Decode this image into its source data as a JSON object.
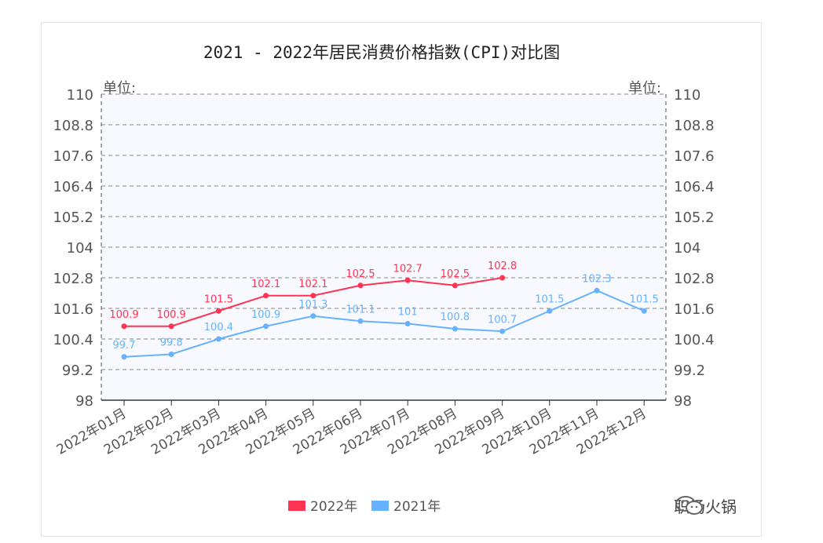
{
  "chart_data": {
    "type": "line",
    "title": "2021 - 2022年居民消费价格指数(CPI)对比图",
    "unit_left": "单位:",
    "unit_right": "单位:",
    "categories": [
      "2022年01月",
      "2022年02月",
      "2022年03月",
      "2022年04月",
      "2022年05月",
      "2022年06月",
      "2022年07月",
      "2022年08月",
      "2022年09月",
      "2022年10月",
      "2022年11月",
      "2022年12月"
    ],
    "y_ticks": [
      "98",
      "99.2",
      "100.4",
      "101.6",
      "102.8",
      "104",
      "105.2",
      "106.4",
      "107.6",
      "108.8",
      "110"
    ],
    "ylim": [
      98,
      110
    ],
    "grid": true,
    "legend_position": "bottom-center",
    "series": [
      {
        "name": "2022年",
        "color": "#ff3352",
        "values": [
          100.9,
          100.9,
          101.5,
          102.1,
          102.1,
          102.5,
          102.7,
          102.5,
          102.8,
          null,
          null,
          null
        ],
        "labels": [
          "100.9",
          "100.9",
          "101.5",
          "102.1",
          "102.1",
          "102.5",
          "102.7",
          "102.5",
          "102.8",
          "",
          "",
          ""
        ]
      },
      {
        "name": "2021年",
        "color": "#66b2ff",
        "values": [
          99.7,
          99.8,
          100.4,
          100.9,
          101.3,
          101.1,
          101,
          100.8,
          100.7,
          101.5,
          102.3,
          101.5
        ],
        "labels": [
          "99.7",
          "99.8",
          "100.4",
          "100.9",
          "101.3",
          "101.1",
          "101",
          "100.8",
          "100.7",
          "101.5",
          "102.3",
          "101.5"
        ]
      }
    ]
  },
  "watermark": {
    "text": "职场火锅",
    "icon": "wechat-icon"
  }
}
